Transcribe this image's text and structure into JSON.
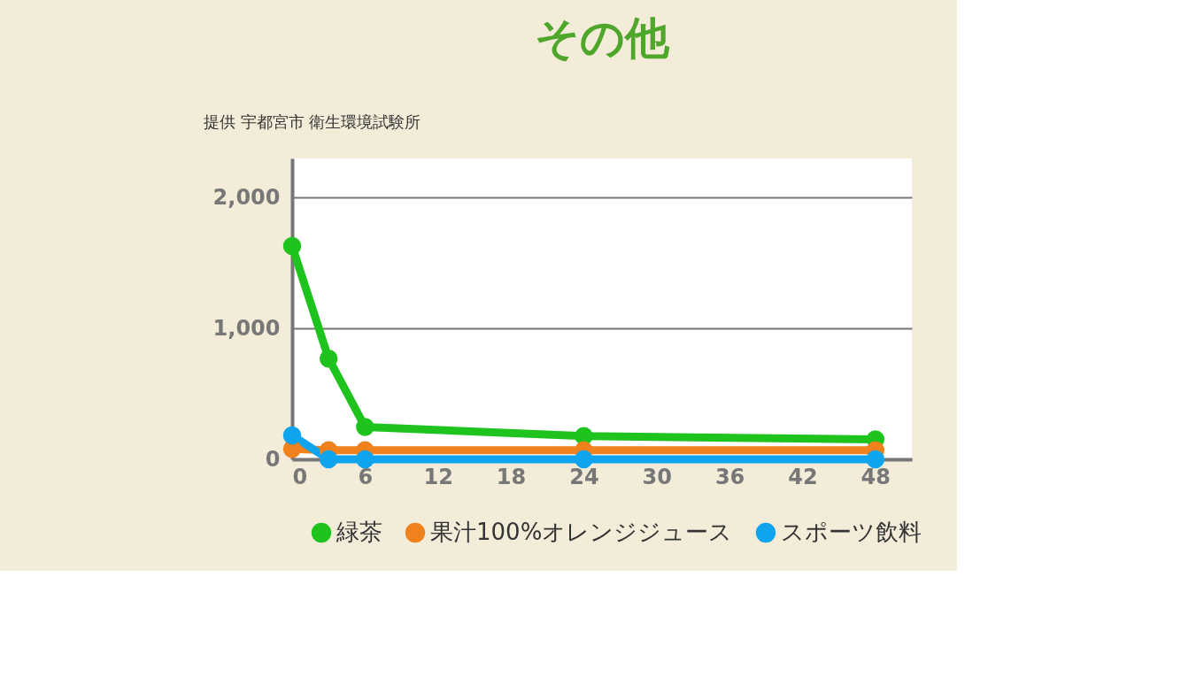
{
  "chart_data": {
    "type": "line",
    "title": "その他",
    "annotations": [
      "提供  宇都宮市 衛生環境試験所"
    ],
    "x": [
      0,
      3,
      6,
      24,
      48
    ],
    "series": [
      {
        "name": "緑茶",
        "color": "#1ec31e",
        "values": [
          1630,
          770,
          247,
          177,
          152
        ]
      },
      {
        "name": "果汁100%オレンジジュース",
        "color": "#f0821e",
        "values": [
          80,
          70,
          70,
          70,
          70
        ]
      },
      {
        "name": "スポーツ飲料",
        "color": "#10a4ee",
        "values": [
          183,
          0,
          0,
          0,
          0
        ]
      }
    ],
    "xlim": [
      0,
      51
    ],
    "xticks": [
      0,
      6,
      12,
      18,
      24,
      30,
      36,
      42,
      48
    ],
    "ylim": [
      0,
      2300
    ],
    "yticks": [
      0,
      {
        "value": 1000,
        "label": "1,000"
      },
      {
        "value": 2000,
        "label": "2,000"
      }
    ],
    "grid": "y",
    "legend": "bottom",
    "marker": "circle",
    "line_style": "solid"
  }
}
